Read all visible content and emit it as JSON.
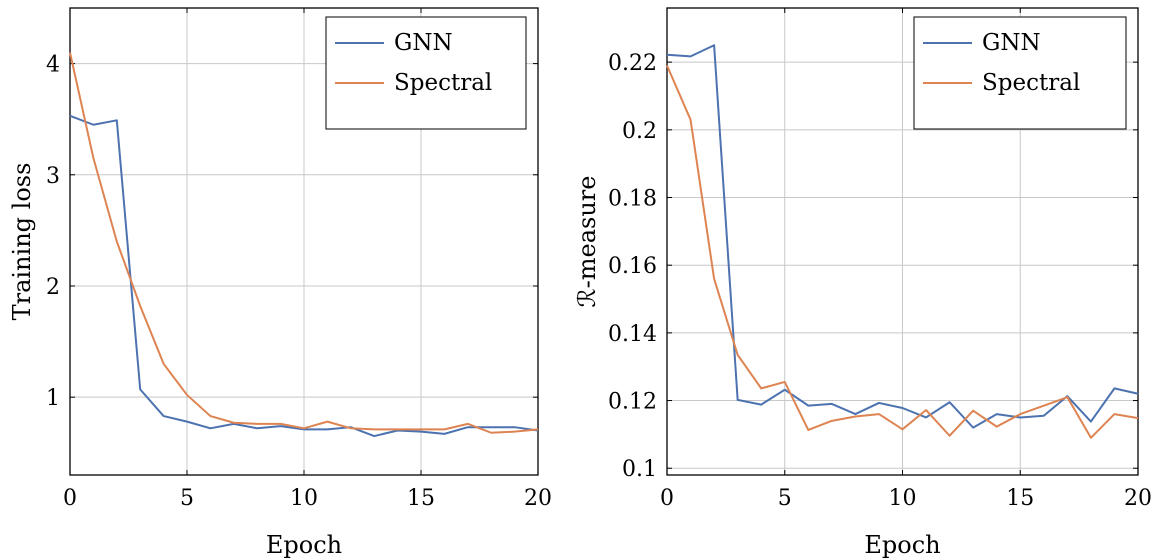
{
  "chart_data": [
    {
      "type": "line",
      "title": "",
      "xlabel": "Epoch",
      "ylabel": "Training loss",
      "xlim": [
        0,
        20
      ],
      "ylim": [
        0.3,
        4.5
      ],
      "xticks": [
        0,
        5,
        10,
        15,
        20
      ],
      "yticks": [
        1,
        2,
        3,
        4
      ],
      "grid": true,
      "legend_position": "top-right",
      "series": [
        {
          "name": "GNN",
          "color": "#4c72b0",
          "x": [
            0,
            1,
            2,
            3,
            4,
            5,
            6,
            7,
            8,
            9,
            10,
            11,
            12,
            13,
            14,
            15,
            16,
            17,
            18,
            19,
            20
          ],
          "y": [
            3.53,
            3.45,
            3.49,
            1.07,
            0.83,
            0.78,
            0.72,
            0.76,
            0.72,
            0.74,
            0.71,
            0.71,
            0.73,
            0.65,
            0.7,
            0.69,
            0.67,
            0.73,
            0.73,
            0.73,
            0.7
          ]
        },
        {
          "name": "Spectral",
          "color": "#dd8452",
          "x": [
            0,
            1,
            2,
            3,
            4,
            5,
            6,
            7,
            8,
            9,
            10,
            11,
            12,
            13,
            14,
            15,
            16,
            17,
            18,
            19,
            20
          ],
          "y": [
            4.1,
            3.15,
            2.4,
            1.82,
            1.3,
            1.02,
            0.83,
            0.77,
            0.76,
            0.76,
            0.72,
            0.78,
            0.72,
            0.71,
            0.71,
            0.71,
            0.71,
            0.76,
            0.68,
            0.69,
            0.71
          ]
        }
      ]
    },
    {
      "type": "line",
      "title": "",
      "xlabel": "Epoch",
      "ylabel": "ℛ-measure",
      "xlim": [
        0,
        20
      ],
      "ylim": [
        0.098,
        0.236
      ],
      "xticks": [
        0,
        5,
        10,
        15,
        20
      ],
      "yticks": [
        0.1,
        0.12,
        0.14,
        0.16,
        0.18,
        0.2,
        0.22
      ],
      "ytick_labels": [
        "0.1",
        "0.12",
        "0.14",
        "0.16",
        "0.18",
        "0.2",
        "0.22"
      ],
      "grid": true,
      "legend_position": "top-right",
      "series": [
        {
          "name": "GNN",
          "color": "#4c72b0",
          "x": [
            0,
            1,
            2,
            3,
            4,
            5,
            6,
            7,
            8,
            9,
            10,
            11,
            12,
            13,
            14,
            15,
            16,
            17,
            18,
            19,
            20
          ],
          "y": [
            0.2222,
            0.2217,
            0.225,
            0.1202,
            0.1188,
            0.1232,
            0.1185,
            0.119,
            0.116,
            0.1193,
            0.1178,
            0.115,
            0.1195,
            0.112,
            0.116,
            0.115,
            0.1155,
            0.1213,
            0.1138,
            0.1236,
            0.122
          ]
        },
        {
          "name": "Spectral",
          "color": "#dd8452",
          "x": [
            0,
            1,
            2,
            3,
            4,
            5,
            6,
            7,
            8,
            9,
            10,
            11,
            12,
            13,
            14,
            15,
            16,
            17,
            18,
            19,
            20
          ],
          "y": [
            0.219,
            0.203,
            0.156,
            0.1335,
            0.1236,
            0.1255,
            0.1113,
            0.114,
            0.1153,
            0.116,
            0.1115,
            0.1172,
            0.1096,
            0.117,
            0.1123,
            0.116,
            0.1185,
            0.121,
            0.109,
            0.116,
            0.1148
          ]
        }
      ]
    }
  ]
}
